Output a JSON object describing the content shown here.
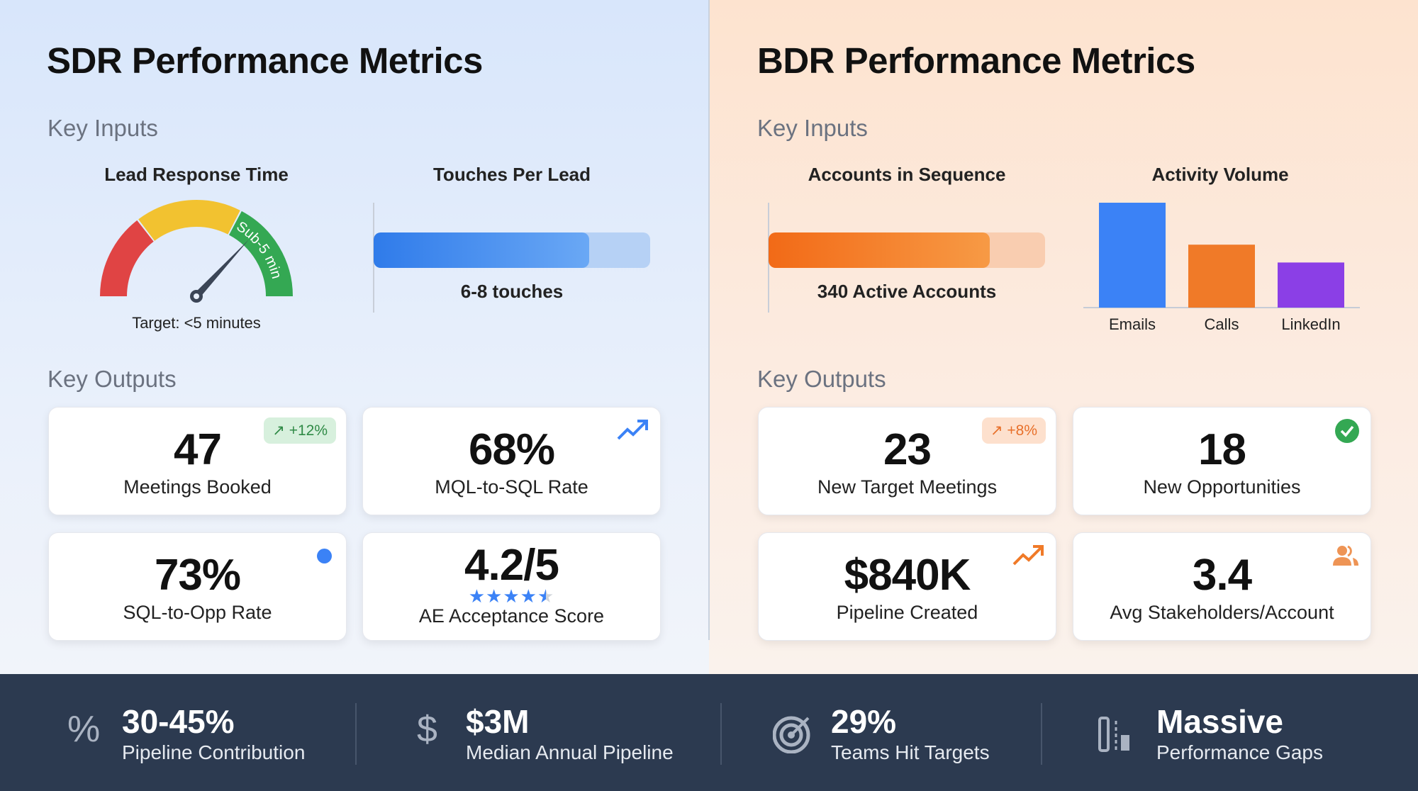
{
  "sdr": {
    "title": "SDR Performance Metrics",
    "inputs_heading": "Key Inputs",
    "lead_response": {
      "label": "Lead Response Time",
      "gauge_band_label": "Sub-5 min",
      "target": "Target: <5 minutes",
      "colors": [
        "#e04444",
        "#f2c230",
        "#34a853"
      ]
    },
    "touches": {
      "label": "Touches Per Lead",
      "value": "6-8 touches",
      "fill_fraction": 0.78,
      "color": "#3b82f6"
    },
    "outputs_heading": "Key Outputs",
    "cards": [
      {
        "value": "47",
        "label": "Meetings Booked",
        "badge": "↗ +12%",
        "icon": "trend-badge"
      },
      {
        "value": "68%",
        "label": "MQL-to-SQL Rate",
        "icon": "trending-up-icon"
      },
      {
        "value": "73%",
        "label": "SQL-to-Opp Rate",
        "icon": "status-dot-icon"
      },
      {
        "value": "4.2/5",
        "label": "AE Acceptance Score",
        "rating": 4.2,
        "rating_max": 5,
        "icon": "star-rating"
      }
    ]
  },
  "bdr": {
    "title": "BDR Performance Metrics",
    "inputs_heading": "Key Inputs",
    "accounts": {
      "label": "Accounts in Sequence",
      "value": "340 Active Accounts",
      "fill_fraction": 0.8,
      "color": "#f97316"
    },
    "activity": {
      "label": "Activity Volume",
      "chart_data": {
        "type": "bar",
        "categories": [
          "Emails",
          "Calls",
          "LinkedIn"
        ],
        "values": [
          100,
          60,
          43
        ],
        "colors": [
          "#3b82f6",
          "#f07a28",
          "#8b3fe6"
        ]
      }
    },
    "outputs_heading": "Key Outputs",
    "cards": [
      {
        "value": "23",
        "label": "New Target Meetings",
        "badge": "↗ +8%",
        "icon": "trend-badge"
      },
      {
        "value": "18",
        "label": "New Opportunities",
        "icon": "check-circle-icon"
      },
      {
        "value": "$840K",
        "label": "Pipeline Created",
        "icon": "trending-up-icon"
      },
      {
        "value": "3.4",
        "label": "Avg Stakeholders/Account",
        "icon": "users-icon"
      }
    ]
  },
  "footer": [
    {
      "value": "30-45%",
      "label": "Pipeline Contribution",
      "icon": "percent-icon"
    },
    {
      "value": "$3M",
      "label": "Median Annual Pipeline",
      "icon": "dollar-icon"
    },
    {
      "value": "29%",
      "label": "Teams Hit Targets",
      "icon": "target-icon"
    },
    {
      "value": "Massive",
      "label": "Performance Gaps",
      "icon": "gap-chart-icon"
    }
  ]
}
